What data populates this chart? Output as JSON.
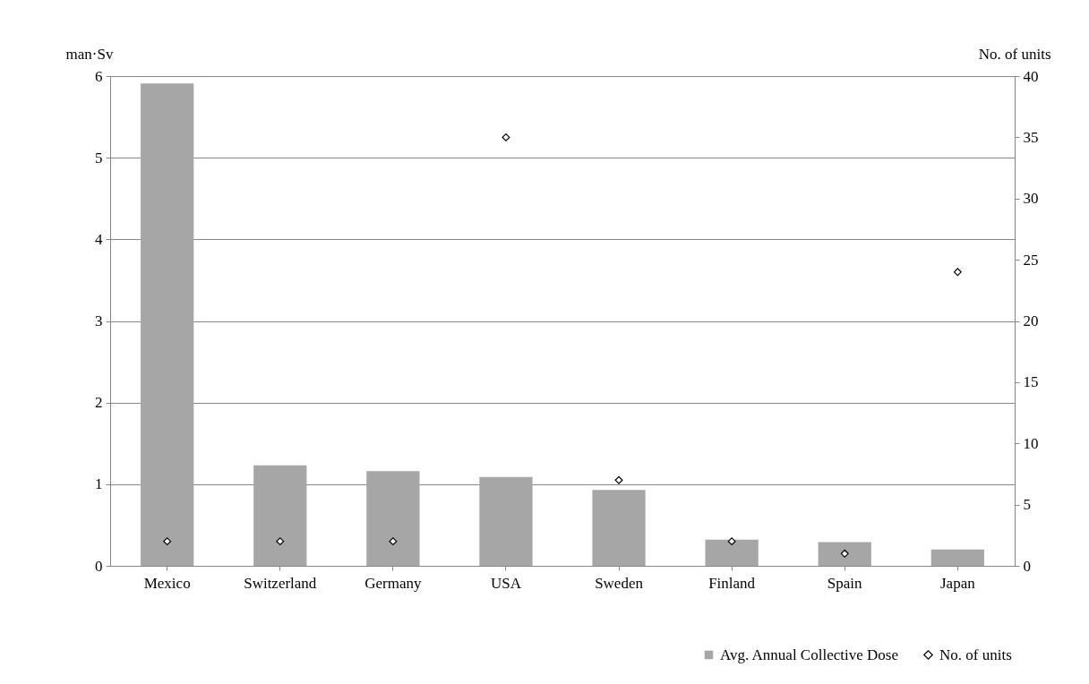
{
  "chart_data": {
    "type": "bar",
    "categories": [
      "Mexico",
      "Switzerland",
      "Germany",
      "USA",
      "Sweden",
      "Finland",
      "Spain",
      "Japan"
    ],
    "ylabel": "man·Sv",
    "y2label": "No. of units",
    "series": [
      {
        "name": "Avg. Annual Collective Dose",
        "type": "bar",
        "color": "#a6a6a6",
        "values": [
          5.91,
          1.23,
          1.16,
          1.09,
          0.93,
          0.32,
          0.29,
          0.2
        ]
      },
      {
        "name": "No. of units",
        "type": "scatter",
        "axis": "y2",
        "marker": "diamond",
        "color": "#000000",
        "values": [
          2,
          2,
          2,
          35,
          7,
          2,
          1,
          24
        ]
      }
    ],
    "ylim": [
      0,
      6
    ],
    "yticks": [
      0,
      1,
      2,
      3,
      4,
      5,
      6
    ],
    "y2lim": [
      0,
      40
    ],
    "y2ticks": [
      0,
      5,
      10,
      15,
      20,
      25,
      30,
      35,
      40
    ],
    "grid": "y",
    "legend": "bottom right"
  }
}
